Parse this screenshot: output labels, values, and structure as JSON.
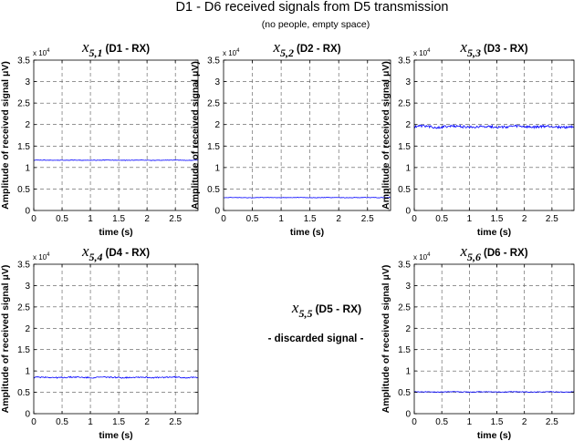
{
  "figure": {
    "title": "D1 - D6 received signals from D5 transmission",
    "subtitle": "(no people, empty space)"
  },
  "colors": {
    "signal": "#0000ff",
    "grid": "#555555",
    "axis": "#000000"
  },
  "chart_data": [
    {
      "type": "line",
      "id": "d1",
      "title_math": "x",
      "title_sub": "5,1",
      "title_suffix": "(D1 - RX)",
      "xlabel": "time (s)",
      "ylabel": "Amplitude of received signal μV)",
      "y_exponent_base": "x 10",
      "y_exponent_power": "4",
      "xlim": [
        0,
        2.9
      ],
      "ylim": [
        0,
        3.5
      ],
      "xticks": [
        "0",
        "0.5",
        "1",
        "1.5",
        "2",
        "2.5"
      ],
      "yticks": [
        "0",
        "0.5",
        "1",
        "1.5",
        "2",
        "2.5",
        "3",
        "3.5"
      ],
      "grid": true,
      "series": [
        {
          "level": 1.17,
          "noise": 0.006
        }
      ]
    },
    {
      "type": "line",
      "id": "d2",
      "title_math": "x",
      "title_sub": "5,2",
      "title_suffix": "(D2 - RX)",
      "xlabel": "time (s)",
      "ylabel": "Amplitude of received signal μV)",
      "y_exponent_base": "x 10",
      "y_exponent_power": "4",
      "xlim": [
        0,
        2.9
      ],
      "ylim": [
        0,
        3.5
      ],
      "xticks": [
        "0",
        "0.5",
        "1",
        "1.5",
        "2",
        "2.5"
      ],
      "yticks": [
        "0",
        "0.5",
        "1",
        "1.5",
        "2",
        "2.5",
        "3",
        "3.5"
      ],
      "grid": true,
      "series": [
        {
          "level": 0.3,
          "noise": 0.006
        }
      ]
    },
    {
      "type": "line",
      "id": "d3",
      "title_math": "x",
      "title_sub": "5,3",
      "title_suffix": "(D3 - RX)",
      "xlabel": "time (s)",
      "ylabel": "Amplitude of received signal μV)",
      "y_exponent_base": "x 10",
      "y_exponent_power": "4",
      "xlim": [
        0,
        2.9
      ],
      "ylim": [
        0,
        3.5
      ],
      "xticks": [
        "0",
        "0.5",
        "1",
        "1.5",
        "2",
        "2.5"
      ],
      "yticks": [
        "0",
        "0.5",
        "1",
        "1.5",
        "2",
        "2.5",
        "3",
        "3.5"
      ],
      "grid": true,
      "series": [
        {
          "level": 1.95,
          "noise": 0.03
        }
      ]
    },
    {
      "type": "line",
      "id": "d4",
      "title_math": "x",
      "title_sub": "5,4",
      "title_suffix": "(D4 - RX)",
      "xlabel": "time (s)",
      "ylabel": "Amplitude of received signal μV)",
      "y_exponent_base": "x 10",
      "y_exponent_power": "4",
      "xlim": [
        0,
        2.9
      ],
      "ylim": [
        0,
        3.5
      ],
      "xticks": [
        "0",
        "0.5",
        "1",
        "1.5",
        "2",
        "2.5"
      ],
      "yticks": [
        "0",
        "0.5",
        "1",
        "1.5",
        "2",
        "2.5",
        "3",
        "3.5"
      ],
      "grid": true,
      "series": [
        {
          "level": 0.85,
          "noise": 0.015
        }
      ]
    },
    {
      "type": "line",
      "id": "d6",
      "title_math": "x",
      "title_sub": "5,6",
      "title_suffix": "(D6 - RX)",
      "xlabel": "time (s)",
      "ylabel": "Amplitude of received signal μV)",
      "y_exponent_base": "x 10",
      "y_exponent_power": "4",
      "xlim": [
        0,
        2.9
      ],
      "ylim": [
        0,
        3.5
      ],
      "xticks": [
        "0",
        "0.5",
        "1",
        "1.5",
        "2",
        "2.5"
      ],
      "yticks": [
        "0",
        "0.5",
        "1",
        "1.5",
        "2",
        "2.5",
        "3",
        "3.5"
      ],
      "grid": true,
      "series": [
        {
          "level": 0.51,
          "noise": 0.008
        }
      ]
    }
  ],
  "discarded": {
    "title_math": "x",
    "title_sub": "5,5",
    "title_suffix": "(D5 - RX)",
    "note": "- discarded signal -"
  }
}
